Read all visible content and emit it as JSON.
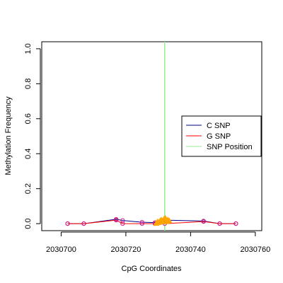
{
  "chart_data": {
    "type": "line",
    "xlabel": "CpG Coordinates",
    "ylabel": "Methylation Frequency",
    "xlim": [
      2030694,
      2030762
    ],
    "ylim": [
      -0.04,
      1.04
    ],
    "x_ticks": [
      2030700,
      2030720,
      2030740,
      2030760
    ],
    "y_ticks": [
      0.0,
      0.2,
      0.4,
      0.6,
      0.8,
      1.0
    ],
    "x_tick_labels": [
      "2030700",
      "2030720",
      "2030740",
      "2030760"
    ],
    "y_tick_labels": [
      "0.0",
      "0.2",
      "0.4",
      "0.6",
      "0.8",
      "1.0"
    ],
    "snp_position": 2030732,
    "series": [
      {
        "name": "C SNP",
        "color": "#00008B",
        "x": [
          2030702,
          2030707,
          2030717,
          2030719,
          2030725,
          2030729,
          2030732,
          2030744,
          2030749,
          2030754
        ],
        "y": [
          0.0,
          0.0,
          0.025,
          0.018,
          0.008,
          0.006,
          0.02,
          0.015,
          0.0,
          0.0
        ]
      },
      {
        "name": "G SNP",
        "color": "#FF0000",
        "x": [
          2030702,
          2030707,
          2030717,
          2030719,
          2030725,
          2030729,
          2030732,
          2030744,
          2030749,
          2030754
        ],
        "y": [
          0.0,
          0.0,
          0.02,
          0.0,
          0.0,
          0.0,
          0.0,
          0.012,
          0.0,
          0.0
        ]
      }
    ],
    "orange_points": {
      "color": "#FFA500",
      "x": [
        2030729.4,
        2030729.8,
        2030730.2,
        2030730.6,
        2030731.0,
        2030731.4,
        2030731.8,
        2030732.2,
        2030732.6,
        2030733.0,
        2030733.4
      ],
      "y": [
        0.0,
        0.01,
        0.005,
        0.015,
        0.02,
        0.01,
        0.025,
        0.03,
        0.01,
        0.02,
        0.015
      ]
    },
    "snp_line_color": "#90EE90",
    "legend": {
      "placement": "right",
      "entries": [
        {
          "label": "C SNP",
          "color": "#00008B"
        },
        {
          "label": "G SNP",
          "color": "#FF0000"
        },
        {
          "label": "SNP Position",
          "color": "#90EE90"
        }
      ]
    }
  }
}
